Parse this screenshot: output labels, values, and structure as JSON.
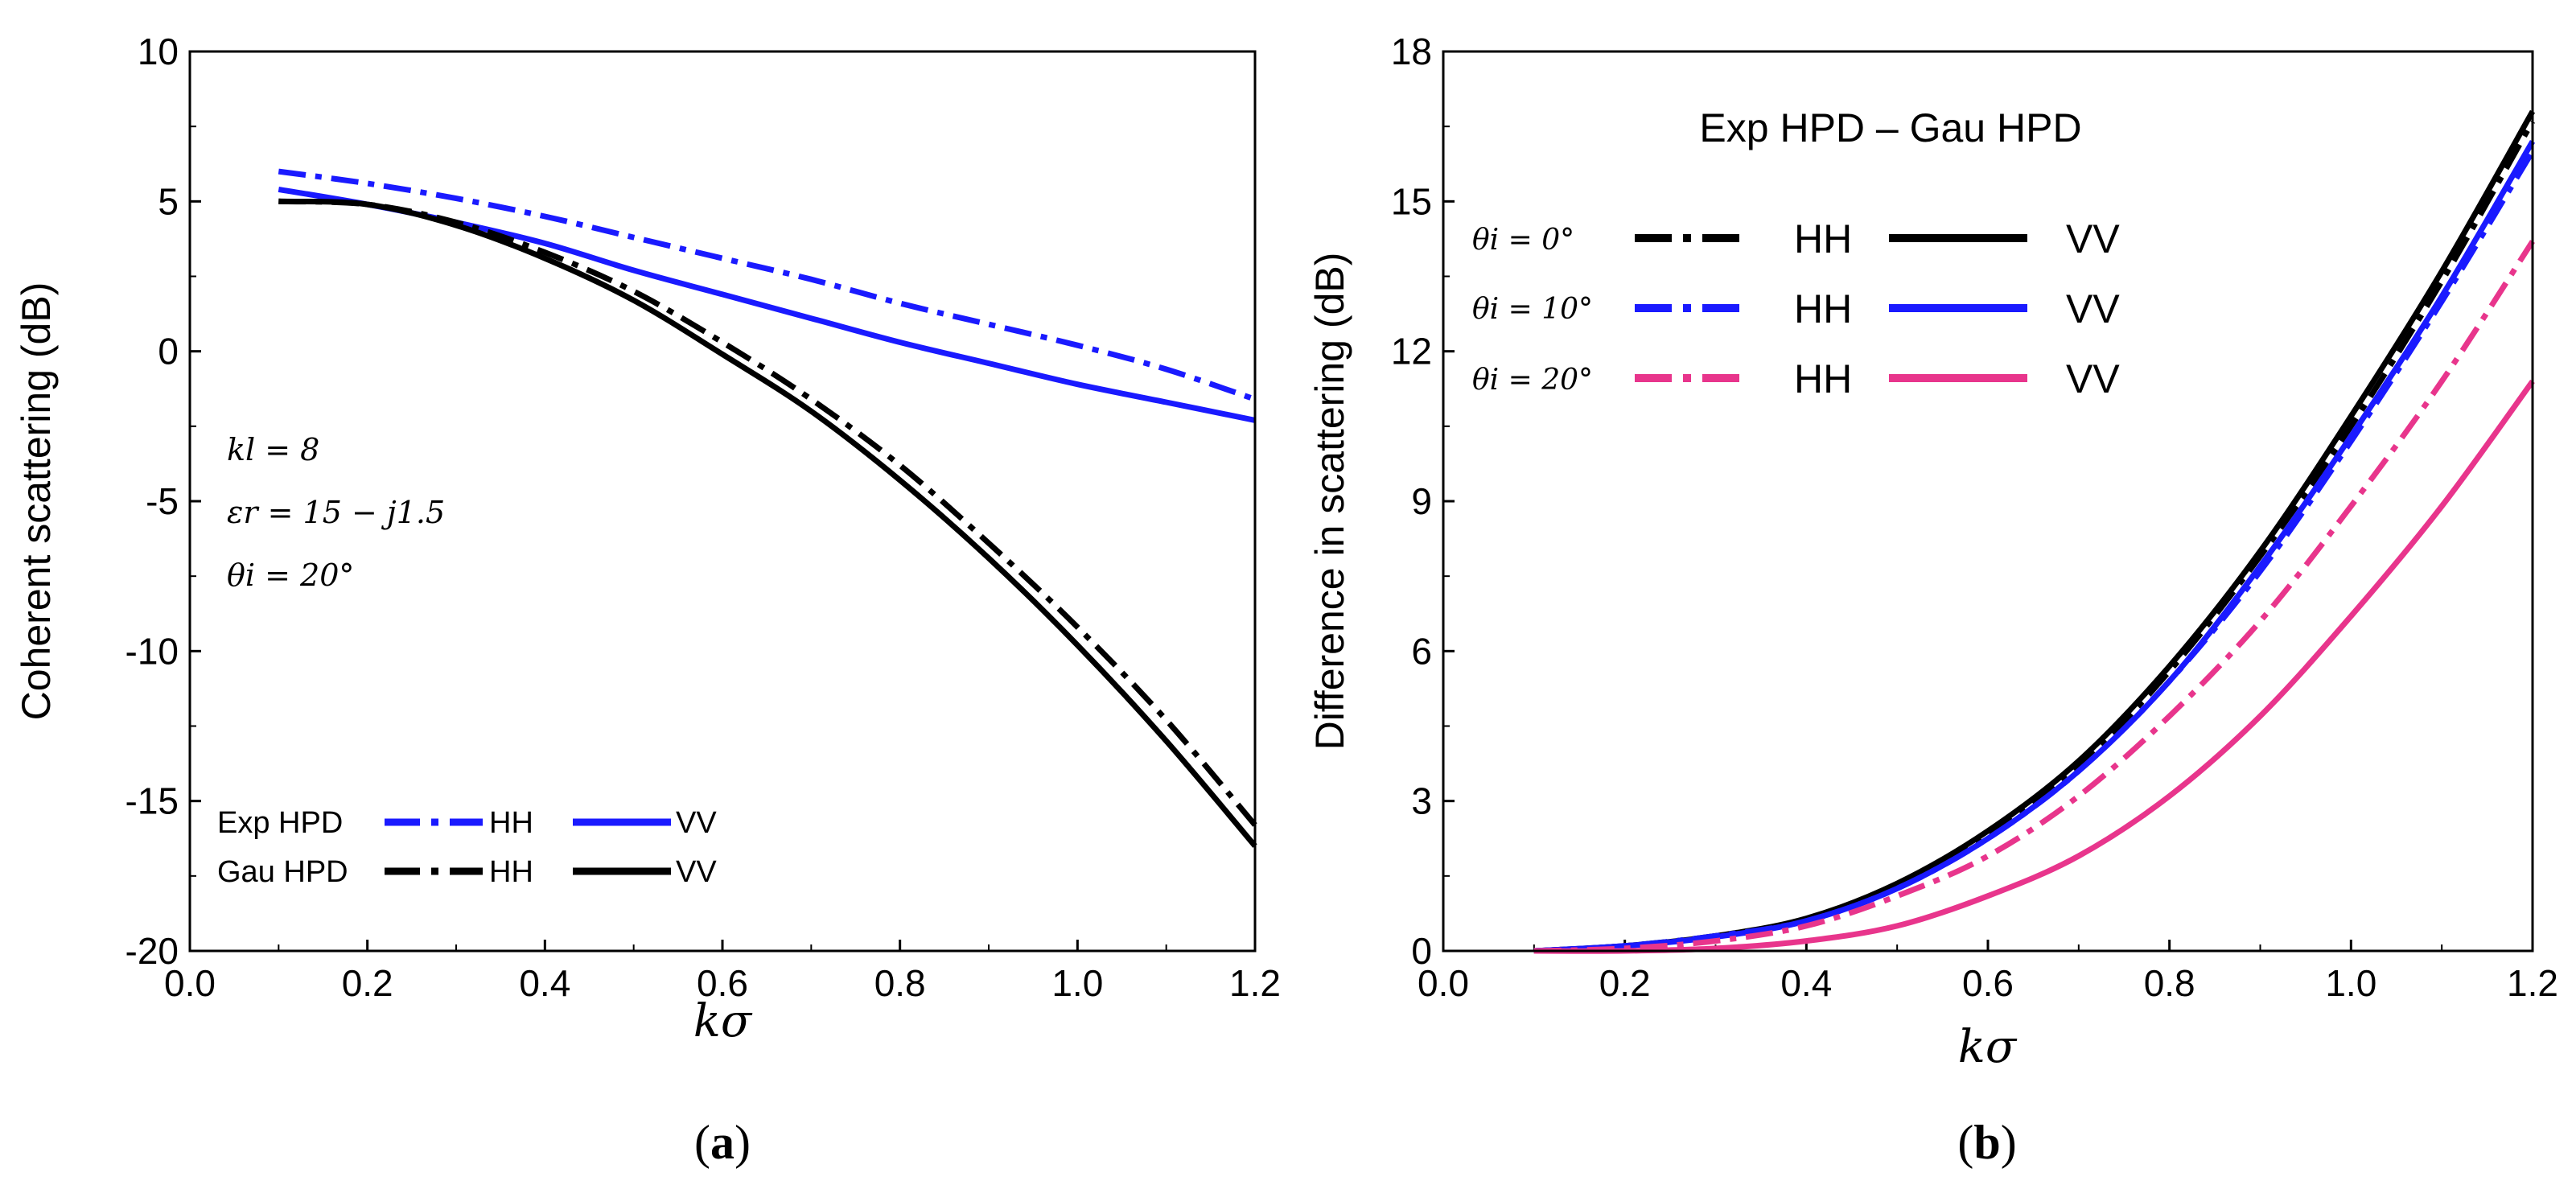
{
  "chart_data": [
    {
      "type": "line",
      "caption_open": "(",
      "caption_letter": "a",
      "caption_close": ")",
      "xlabel": "kσ",
      "ylabel": "Coherent scattering (dB)",
      "xlim": [
        0.0,
        1.2
      ],
      "ylim": [
        -20,
        10
      ],
      "xticks": [
        "0.0",
        "0.2",
        "0.4",
        "0.6",
        "0.8",
        "1.0",
        "1.2"
      ],
      "yticks": [
        "10",
        "5",
        "0",
        "-5",
        "-10",
        "-15",
        "-20"
      ],
      "annotations": [
        "kl = 8",
        "εr = 15 − j1.5",
        "θi = 20°"
      ],
      "legend": {
        "rows": [
          {
            "label": "Exp  HPD",
            "hh": "HH",
            "vv": "VV"
          },
          {
            "label": "Gau HPD",
            "hh": "HH",
            "vv": "VV"
          }
        ]
      },
      "x": [
        0.1,
        0.2,
        0.3,
        0.4,
        0.5,
        0.6,
        0.7,
        0.8,
        0.9,
        1.0,
        1.1,
        1.2
      ],
      "series": [
        {
          "name": "Exp HPD HH",
          "color": "#1a1aff",
          "style": "dashdot",
          "values": [
            6.0,
            5.6,
            5.1,
            4.5,
            3.8,
            3.1,
            2.4,
            1.6,
            0.9,
            0.2,
            -0.6,
            -1.6
          ]
        },
        {
          "name": "Exp HPD VV",
          "color": "#1a1aff",
          "style": "solid",
          "values": [
            5.4,
            4.9,
            4.3,
            3.6,
            2.7,
            1.9,
            1.1,
            0.3,
            -0.4,
            -1.1,
            -1.7,
            -2.3
          ]
        },
        {
          "name": "Gau HPD HH",
          "color": "#000000",
          "style": "dashdot",
          "values": [
            5.0,
            4.9,
            4.3,
            3.3,
            2.0,
            0.3,
            -1.6,
            -3.8,
            -6.4,
            -9.2,
            -12.3,
            -15.8
          ]
        },
        {
          "name": "Gau HPD VV",
          "color": "#000000",
          "style": "solid",
          "values": [
            5.0,
            4.9,
            4.2,
            3.1,
            1.7,
            -0.1,
            -2.0,
            -4.3,
            -6.9,
            -9.8,
            -13.0,
            -16.5
          ]
        }
      ]
    },
    {
      "type": "line",
      "caption_open": "(",
      "caption_letter": "b",
      "caption_close": ")",
      "title": "Exp  HPD – Gau HPD",
      "xlabel": "kσ",
      "ylabel": "Difference in scattering (dB)",
      "xlim": [
        0.0,
        1.2
      ],
      "ylim": [
        0,
        18
      ],
      "xticks": [
        "0.0",
        "0.2",
        "0.4",
        "0.6",
        "0.8",
        "1.0",
        "1.2"
      ],
      "yticks": [
        "18",
        "15",
        "12",
        "9",
        "6",
        "3",
        "0"
      ],
      "legend": {
        "rows": [
          {
            "label": "θi = 0°",
            "hh": "HH",
            "vv": "VV"
          },
          {
            "label": "θi = 10°",
            "hh": "HH",
            "vv": "VV"
          },
          {
            "label": "θi = 20°",
            "hh": "HH",
            "vv": "VV"
          }
        ]
      },
      "x": [
        0.1,
        0.2,
        0.3,
        0.4,
        0.5,
        0.6,
        0.7,
        0.8,
        0.9,
        1.0,
        1.1,
        1.2
      ],
      "series": [
        {
          "name": "θi = 0° HH",
          "color": "#000000",
          "style": "dashdot",
          "values": [
            0.0,
            0.1,
            0.3,
            0.6,
            1.3,
            2.3,
            3.7,
            5.6,
            7.9,
            10.5,
            13.4,
            16.6
          ]
        },
        {
          "name": "θi = 0° VV",
          "color": "#000000",
          "style": "solid",
          "values": [
            0.0,
            0.1,
            0.3,
            0.65,
            1.35,
            2.4,
            3.8,
            5.7,
            8.0,
            10.7,
            13.6,
            16.8
          ]
        },
        {
          "name": "θi = 10° HH",
          "color": "#1a1aff",
          "style": "dashdot",
          "values": [
            0.0,
            0.1,
            0.3,
            0.6,
            1.25,
            2.25,
            3.6,
            5.4,
            7.6,
            10.2,
            13.0,
            16.0
          ]
        },
        {
          "name": "θi = 10° VV",
          "color": "#1a1aff",
          "style": "solid",
          "values": [
            0.0,
            0.1,
            0.28,
            0.6,
            1.25,
            2.25,
            3.6,
            5.4,
            7.7,
            10.3,
            13.1,
            16.2
          ]
        },
        {
          "name": "θi = 20° HH",
          "color": "#e8358c",
          "style": "dashdot",
          "values": [
            0.0,
            0.05,
            0.2,
            0.5,
            1.1,
            1.9,
            3.1,
            4.7,
            6.6,
            8.9,
            11.4,
            14.2
          ]
        },
        {
          "name": "θi = 20° VV",
          "color": "#e8358c",
          "style": "solid",
          "values": [
            0.0,
            0.0,
            0.05,
            0.2,
            0.5,
            1.1,
            1.9,
            3.1,
            4.7,
            6.7,
            8.9,
            11.4
          ]
        }
      ]
    }
  ]
}
